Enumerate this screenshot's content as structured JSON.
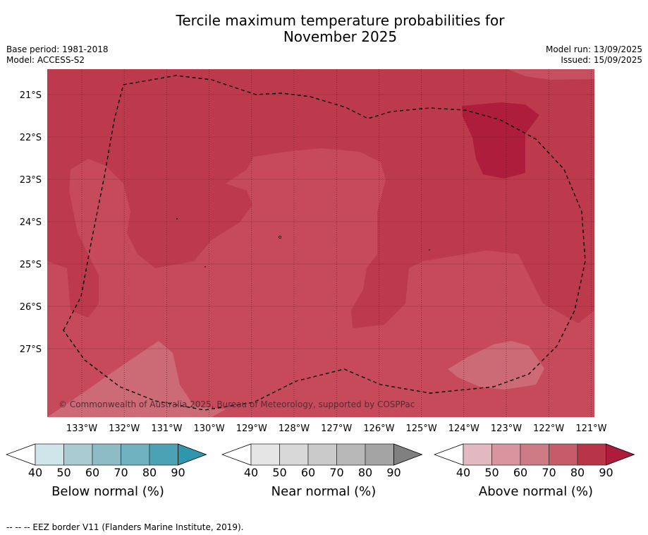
{
  "title_line1": "Tercile maximum temperature probabilities for",
  "title_line2": "November 2025",
  "base_period": "Base period: 1981-2018",
  "model": "Model: ACCESS-S2",
  "model_run": "Model run: 13/09/2025",
  "issued": "Issued: 15/09/2025",
  "copyright": "© Commonwealth of Australia 2025, Bureau of Meteorology, supported by COSPPac",
  "footnote": "--  --  -- EEZ border V11 (Flanders Marine Institute, 2019).",
  "lat_labels": [
    "21°S",
    "22°S",
    "23°S",
    "24°S",
    "25°S",
    "26°S",
    "27°S"
  ],
  "lon_labels": [
    "133°W",
    "132°W",
    "131°W",
    "130°W",
    "129°W",
    "128°W",
    "127°W",
    "126°W",
    "125°W",
    "124°W",
    "123°W",
    "122°W",
    "121°W"
  ],
  "legends": [
    {
      "label": "Below normal (%)",
      "ticks": [
        "40",
        "50",
        "60",
        "70",
        "80",
        "90"
      ],
      "colors": [
        "#cfe5ea",
        "#aacbd2",
        "#8dbcc7",
        "#6fb1be",
        "#4aa2b4",
        "#2f97ad"
      ]
    },
    {
      "label": "Near normal (%)",
      "ticks": [
        "40",
        "50",
        "60",
        "70",
        "80",
        "90"
      ],
      "colors": [
        "#e5e5e5",
        "#d8d8d8",
        "#cacaca",
        "#b8b8b8",
        "#a4a4a4",
        "#808080"
      ]
    },
    {
      "label": "Above normal (%)",
      "ticks": [
        "40",
        "50",
        "60",
        "70",
        "80",
        "90"
      ],
      "colors": [
        "#e3b9c1",
        "#d8959f",
        "#cf7b85",
        "#c65c6a",
        "#b83448",
        "#ad1c3a"
      ]
    }
  ]
}
